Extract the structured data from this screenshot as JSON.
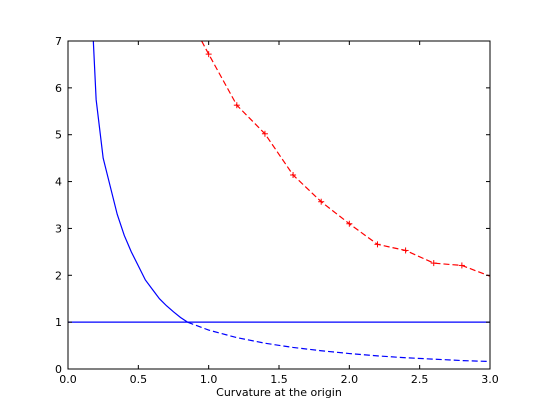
{
  "chart_data": {
    "type": "line",
    "title": "",
    "xlabel": "Curvature at the origin",
    "ylabel": "",
    "xlim": [
      0.0,
      3.0
    ],
    "ylim": [
      0,
      7
    ],
    "x_ticks": [
      0.0,
      0.5,
      1.0,
      1.5,
      2.0,
      2.5,
      3.0
    ],
    "x_tick_labels": [
      "0.0",
      "0.5",
      "1.0",
      "1.5",
      "2.0",
      "2.5",
      "3.0"
    ],
    "y_ticks": [
      0,
      1,
      2,
      3,
      4,
      5,
      6,
      7
    ],
    "y_tick_labels": [
      "0",
      "1",
      "2",
      "3",
      "4",
      "5",
      "6",
      "7"
    ],
    "grid": false,
    "series": [
      {
        "style": "solid",
        "color": "#0000ff",
        "x": [
          0.18,
          0.2,
          0.25,
          0.3,
          0.35,
          0.4,
          0.45,
          0.5,
          0.55,
          0.6,
          0.65,
          0.7,
          0.75,
          0.8,
          0.85
        ],
        "y": [
          7.0,
          5.75,
          4.5,
          3.9,
          3.3,
          2.85,
          2.5,
          2.2,
          1.9,
          1.7,
          1.5,
          1.35,
          1.22,
          1.1,
          1.0
        ]
      },
      {
        "style": "dashed",
        "color": "#0000ff",
        "x": [
          0.85,
          1.0,
          1.2,
          1.4,
          1.6,
          1.8,
          2.0,
          2.2,
          2.4,
          2.6,
          2.8,
          3.0
        ],
        "y": [
          1.0,
          0.83,
          0.67,
          0.55,
          0.46,
          0.39,
          0.33,
          0.28,
          0.24,
          0.21,
          0.18,
          0.16
        ]
      },
      {
        "style": "solid",
        "color": "#0000ff",
        "x": [
          0.0,
          3.0
        ],
        "y": [
          1.0,
          1.0
        ]
      },
      {
        "style": "dashed",
        "color": "#ff0000",
        "marker": "+",
        "x": [
          0.95,
          1.0,
          1.2,
          1.4,
          1.6,
          1.8,
          2.0,
          2.2,
          2.4,
          2.6,
          2.8,
          3.0
        ],
        "y": [
          7.0,
          6.72,
          5.63,
          5.02,
          4.14,
          3.57,
          3.1,
          2.66,
          2.53,
          2.26,
          2.21,
          1.98
        ],
        "marker_x": [
          1.0,
          1.2,
          1.4,
          1.6,
          1.8,
          2.0,
          2.2,
          2.4,
          2.6,
          2.8
        ],
        "marker_y": [
          6.72,
          5.63,
          5.02,
          4.14,
          3.57,
          3.1,
          2.66,
          2.53,
          2.26,
          2.21
        ]
      }
    ]
  }
}
